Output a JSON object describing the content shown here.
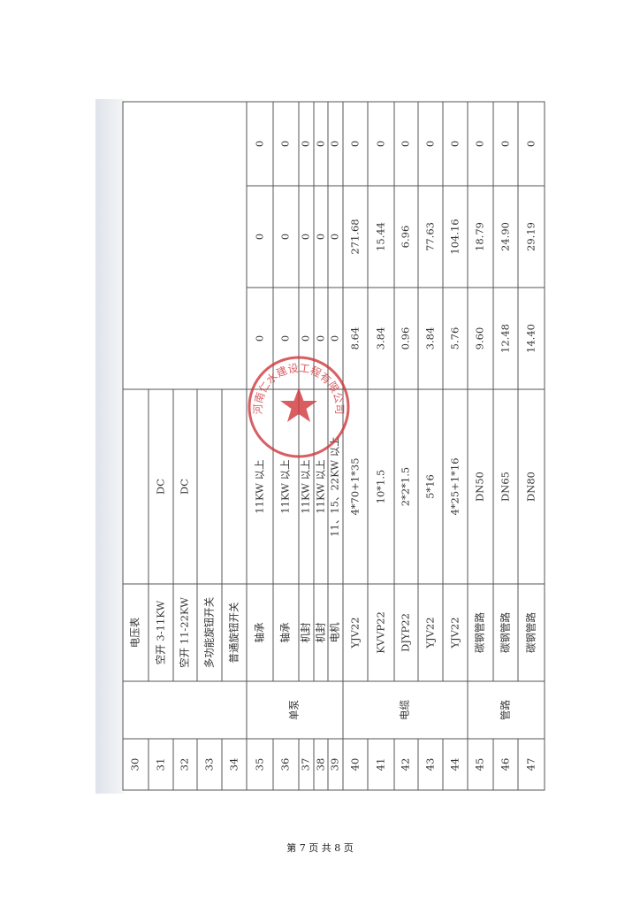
{
  "table": {
    "rows": [
      {
        "no": "30",
        "name": "电压表",
        "spec": "",
        "v1": "",
        "v2": "",
        "v3": ""
      },
      {
        "no": "31",
        "name": "空开 3-11KW",
        "spec": "DC"
      },
      {
        "no": "32",
        "name": "空开 11-22KW",
        "spec": "DC"
      },
      {
        "no": "33",
        "name": "多功能旋钮开关",
        "spec": ""
      },
      {
        "no": "34",
        "name": "普通旋钮开关",
        "spec": ""
      },
      {
        "no": "35",
        "name": "轴承",
        "spec": "11KW 以上",
        "v1": "0",
        "v2": "0",
        "v3": "0"
      },
      {
        "no": "36",
        "name": "轴承",
        "spec": "11KW 以上",
        "v1": "0",
        "v2": "0",
        "v3": "0"
      },
      {
        "no": "37",
        "name": "机封",
        "spec": "11KW 以上",
        "v1": "0",
        "v2": "0",
        "v3": "0"
      },
      {
        "no": "38",
        "name": "机封",
        "spec": "11KW 以上",
        "v1": "0",
        "v2": "0",
        "v3": "0"
      },
      {
        "no": "39",
        "name": "电机",
        "spec": "11、15、22KW 以上",
        "v1": "0",
        "v2": "0",
        "v3": "0"
      },
      {
        "no": "40",
        "name": "YJV22",
        "spec": "4*70+1*35",
        "v1": "8.64",
        "v2": "271.68",
        "v3": "0"
      },
      {
        "no": "41",
        "name": "KVVP22",
        "spec": "10*1.5",
        "v1": "3.84",
        "v2": "15.44",
        "v3": "0"
      },
      {
        "no": "42",
        "name": "DJYP22",
        "spec": "2*2*1.5",
        "v1": "0.96",
        "v2": "6.96",
        "v3": "0"
      },
      {
        "no": "43",
        "name": "YJV22",
        "spec": "5*16",
        "v1": "3.84",
        "v2": "77.63",
        "v3": "0"
      },
      {
        "no": "44",
        "name": "YJV22",
        "spec": "4*25+1*16",
        "v1": "5.76",
        "v2": "104.16",
        "v3": "0"
      },
      {
        "no": "45",
        "name": "碳钢管路",
        "spec": "DN50",
        "v1": "9.60",
        "v2": "18.79",
        "v3": "0"
      },
      {
        "no": "46",
        "name": "碳钢管路",
        "spec": "DN65",
        "v1": "12.48",
        "v2": "24.90",
        "v3": "0"
      },
      {
        "no": "47",
        "name": "碳钢管路",
        "spec": "DN80",
        "v1": "14.40",
        "v2": "29.19",
        "v3": "0"
      }
    ],
    "categories": [
      {
        "label": "",
        "start": 0,
        "span": 5
      },
      {
        "label": "单泵",
        "start": 5,
        "span": 5
      },
      {
        "label": "电缆",
        "start": 10,
        "span": 5
      },
      {
        "label": "管路",
        "start": 15,
        "span": 3
      }
    ]
  },
  "stamp": {
    "text": "河南仁水建设工程有限公司",
    "color": "#d0363c"
  },
  "footer": {
    "page_label": "第 7 页 共 8 页"
  }
}
